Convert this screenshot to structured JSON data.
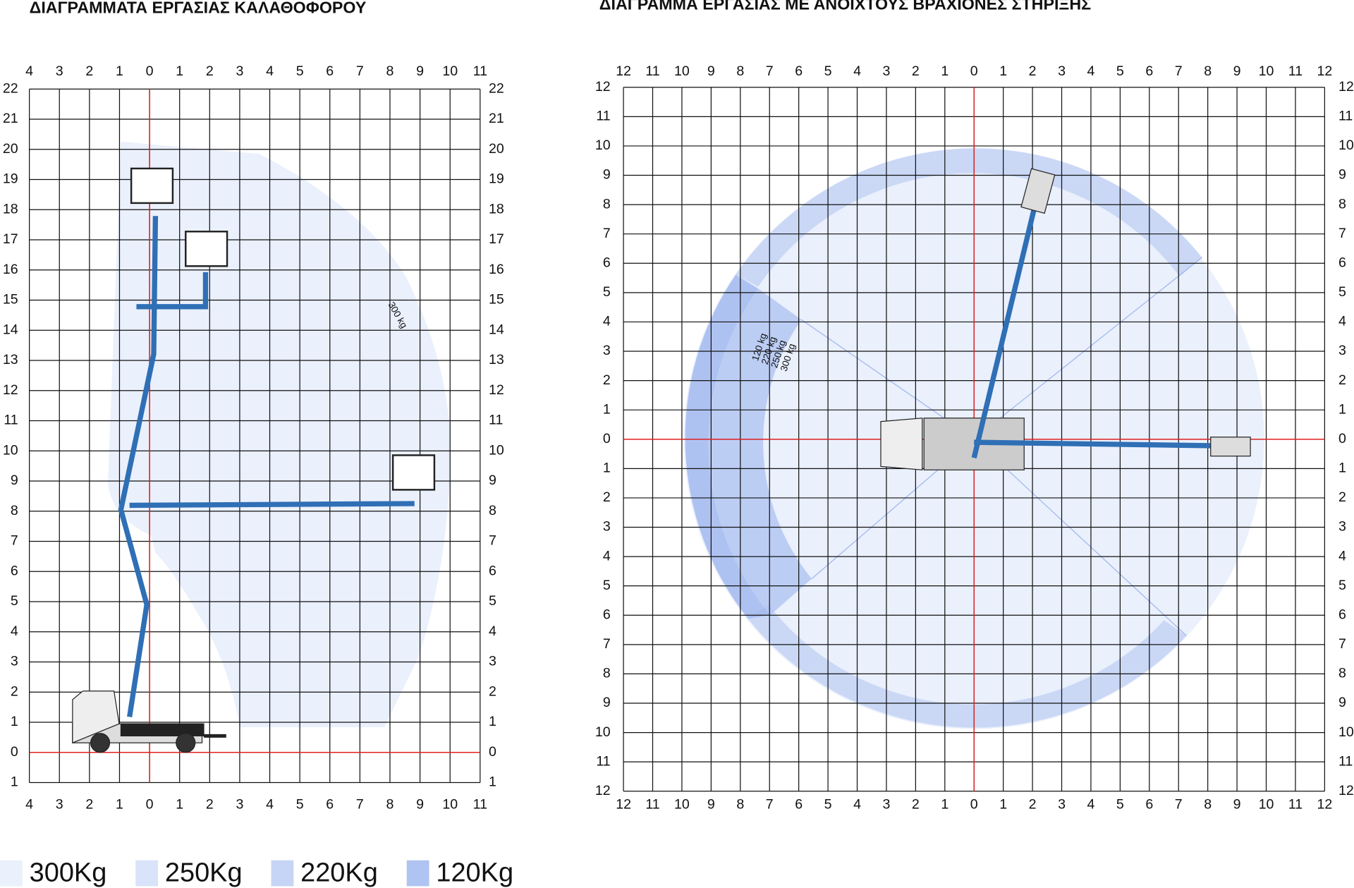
{
  "left_diagram": {
    "title": "ΔΙΑΓΡΑΜΜΑΤΑ ΕΡΓΑΣΙΑΣ ΚΑΛΑΘΟΦΟΡΟΥ",
    "x_labels": [
      4,
      3,
      2,
      1,
      0,
      1,
      2,
      3,
      4,
      5,
      6,
      7,
      8,
      9,
      10,
      11
    ],
    "y_labels": [
      22,
      21,
      20,
      19,
      18,
      17,
      16,
      15,
      14,
      13,
      12,
      11,
      10,
      9,
      8,
      7,
      6,
      5,
      4,
      3,
      2,
      1,
      0,
      1
    ],
    "annotation": "300 kg"
  },
  "right_diagram": {
    "title": "ΔΙΑΓΡΑΜΜΑ ΕΡΓΑΣΙΑΣ ΜΕ ΑΝΟΙΧΤΟΥΣ ΒΡΑΧΙΟΝΕΣ ΣΤΗΡΙΞΗΣ",
    "x_labels": [
      12,
      11,
      10,
      9,
      8,
      7,
      6,
      5,
      4,
      3,
      2,
      1,
      0,
      1,
      2,
      3,
      4,
      5,
      6,
      7,
      8,
      9,
      10,
      11,
      12
    ],
    "y_labels": [
      12,
      11,
      10,
      9,
      8,
      7,
      6,
      5,
      4,
      3,
      2,
      1,
      0,
      1,
      2,
      3,
      4,
      5,
      6,
      7,
      8,
      9,
      10,
      11,
      12
    ],
    "annotations": [
      "120 kg",
      "220 kg",
      "250 kg",
      "300 kg"
    ]
  },
  "legend": [
    {
      "label": "300Kg",
      "color": "#eaf0fc"
    },
    {
      "label": "250Kg",
      "color": "#d9e4fa"
    },
    {
      "label": "220Kg",
      "color": "#c6d5f5"
    },
    {
      "label": "120Kg",
      "color": "#b0c4f1"
    }
  ]
}
